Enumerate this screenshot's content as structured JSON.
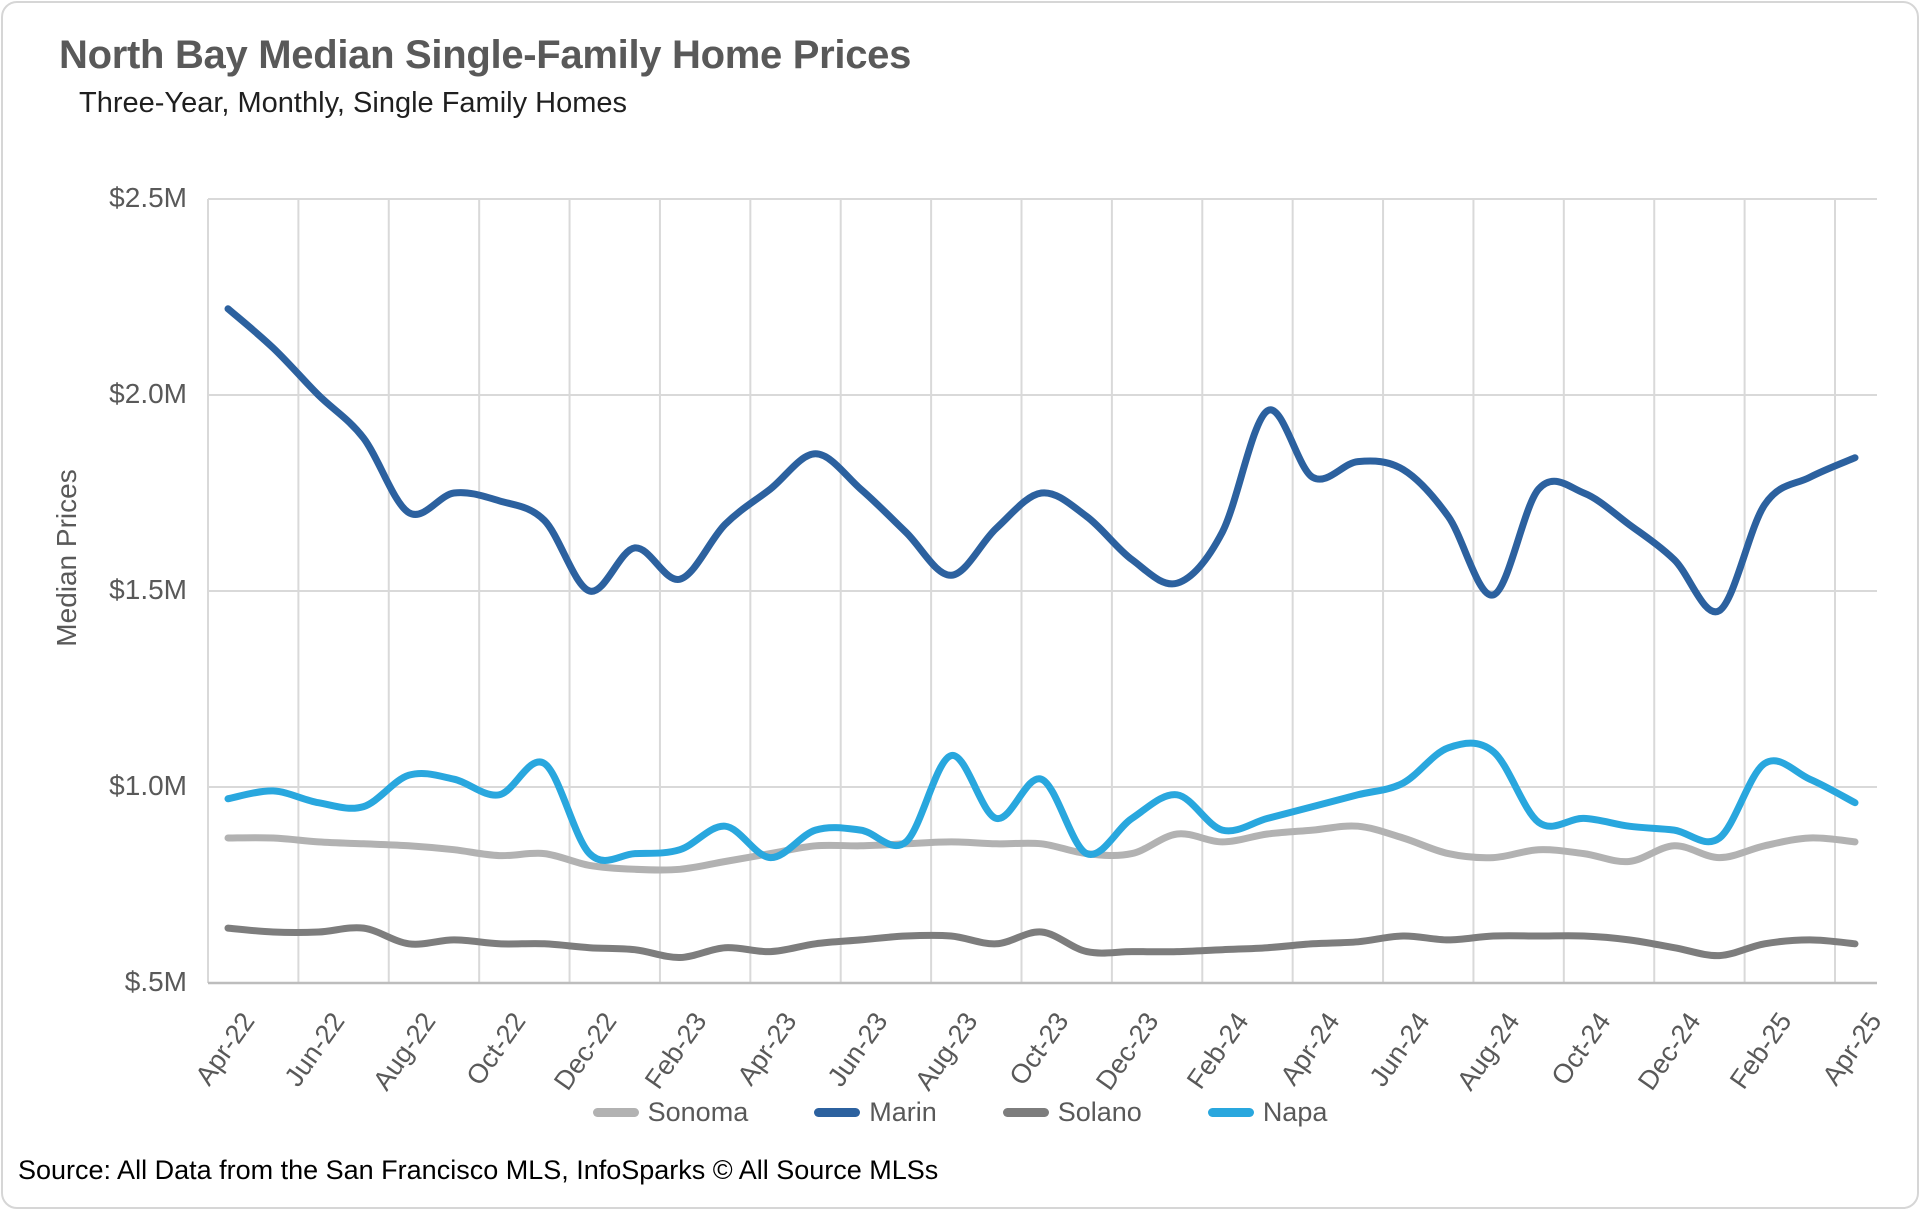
{
  "chart_data": {
    "type": "line",
    "title": "North Bay Median Single-Family Home Prices",
    "subtitle": "Three-Year, Monthly, Single Family Homes",
    "ylabel": "Median Prices",
    "source": "Source: All Data from the San Francisco MLS, InfoSparks © All Source MLSs",
    "unit": "millions of dollars",
    "ylim": [
      0.5,
      2.5
    ],
    "grid": true,
    "legend_position": "bottom",
    "yticks": [
      {
        "value": 2.5,
        "label": "$2.5M"
      },
      {
        "value": 2.0,
        "label": "$2.0M"
      },
      {
        "value": 1.5,
        "label": "$1.5M"
      },
      {
        "value": 1.0,
        "label": "$1.0M"
      },
      {
        "value": 0.5,
        "label": "$.5M"
      }
    ],
    "x": [
      "Apr-22",
      "May-22",
      "Jun-22",
      "Jul-22",
      "Aug-22",
      "Sep-22",
      "Oct-22",
      "Nov-22",
      "Dec-22",
      "Jan-23",
      "Feb-23",
      "Mar-23",
      "Apr-23",
      "May-23",
      "Jun-23",
      "Jul-23",
      "Aug-23",
      "Sep-23",
      "Oct-23",
      "Nov-23",
      "Dec-23",
      "Jan-24",
      "Feb-24",
      "Mar-24",
      "Apr-24",
      "May-24",
      "Jun-24",
      "Jul-24",
      "Aug-24",
      "Sep-24",
      "Oct-24",
      "Nov-24",
      "Dec-24",
      "Jan-25",
      "Feb-25",
      "Mar-25",
      "Apr-25"
    ],
    "xtick_every": 2,
    "series": [
      {
        "name": "Sonoma",
        "color": "#b2b2b2",
        "values": [
          0.87,
          0.87,
          0.86,
          0.855,
          0.85,
          0.84,
          0.825,
          0.83,
          0.8,
          0.79,
          0.79,
          0.81,
          0.83,
          0.85,
          0.85,
          0.855,
          0.86,
          0.855,
          0.855,
          0.83,
          0.83,
          0.88,
          0.86,
          0.88,
          0.89,
          0.9,
          0.87,
          0.83,
          0.82,
          0.84,
          0.83,
          0.81,
          0.85,
          0.82,
          0.85,
          0.87,
          0.86
        ]
      },
      {
        "name": "Marin",
        "color": "#2c619f",
        "values": [
          2.22,
          2.12,
          2.0,
          1.89,
          1.7,
          1.75,
          1.73,
          1.68,
          1.5,
          1.61,
          1.53,
          1.67,
          1.76,
          1.85,
          1.76,
          1.65,
          1.54,
          1.66,
          1.75,
          1.69,
          1.58,
          1.52,
          1.65,
          1.96,
          1.79,
          1.83,
          1.81,
          1.69,
          1.49,
          1.76,
          1.75,
          1.67,
          1.58,
          1.45,
          1.72,
          1.79,
          1.84
        ]
      },
      {
        "name": "Solano",
        "color": "#7d7d7d",
        "values": [
          0.64,
          0.63,
          0.63,
          0.64,
          0.6,
          0.61,
          0.6,
          0.6,
          0.59,
          0.585,
          0.565,
          0.59,
          0.58,
          0.6,
          0.61,
          0.62,
          0.62,
          0.6,
          0.63,
          0.58,
          0.58,
          0.58,
          0.585,
          0.59,
          0.6,
          0.605,
          0.62,
          0.61,
          0.62,
          0.62,
          0.62,
          0.61,
          0.59,
          0.57,
          0.6,
          0.61,
          0.6
        ]
      },
      {
        "name": "Napa",
        "color": "#29a7de",
        "values": [
          0.97,
          0.99,
          0.96,
          0.95,
          1.03,
          1.02,
          0.98,
          1.06,
          0.83,
          0.83,
          0.84,
          0.9,
          0.82,
          0.89,
          0.89,
          0.86,
          1.08,
          0.92,
          1.02,
          0.83,
          0.92,
          0.98,
          0.89,
          0.92,
          0.95,
          0.98,
          1.01,
          1.1,
          1.09,
          0.91,
          0.92,
          0.9,
          0.89,
          0.87,
          1.06,
          1.02,
          0.96
        ]
      }
    ],
    "colors": {
      "gridline": "#d9d9d9",
      "axis": "#bdbdbd",
      "tick_text": "#595959",
      "title_text": "#595959"
    }
  }
}
